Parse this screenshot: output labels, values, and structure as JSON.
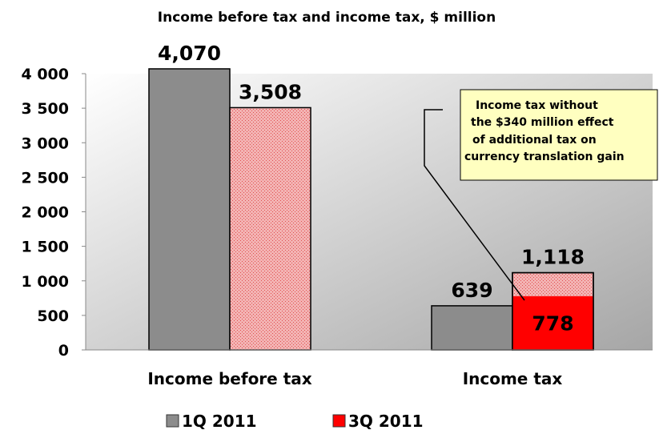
{
  "chart_data": {
    "type": "bar",
    "title": "Income before tax and income tax, $ million",
    "categories": [
      "Income before tax",
      "Income tax"
    ],
    "ylim": [
      0,
      4000
    ],
    "yticks": [
      0,
      500,
      1000,
      1500,
      2000,
      2500,
      3000,
      3500,
      4000
    ],
    "ytick_labels": [
      "0",
      "500",
      "1 000",
      "1 500",
      "2 000",
      "2 500",
      "3 000",
      "3 500",
      "4 000"
    ],
    "series": [
      {
        "name": "1Q 2011",
        "color": "#8c8c8c",
        "values": [
          4070,
          639
        ],
        "labels": [
          "4,070",
          "639"
        ]
      },
      {
        "name": "3Q 2011",
        "color": "#ff0000",
        "values": [
          3508,
          1118
        ],
        "labels": [
          "3,508",
          "1,118"
        ]
      }
    ],
    "stacked_segment": {
      "category": "Income tax",
      "series": "3Q 2011",
      "value": 778,
      "label": "778"
    },
    "annotation": {
      "lines": [
        "Income tax without",
        "the $340 million effect",
        "of additional tax on",
        "currency translation gain"
      ],
      "color": "#ffffc0"
    },
    "grid": false,
    "legend_position": "bottom"
  }
}
